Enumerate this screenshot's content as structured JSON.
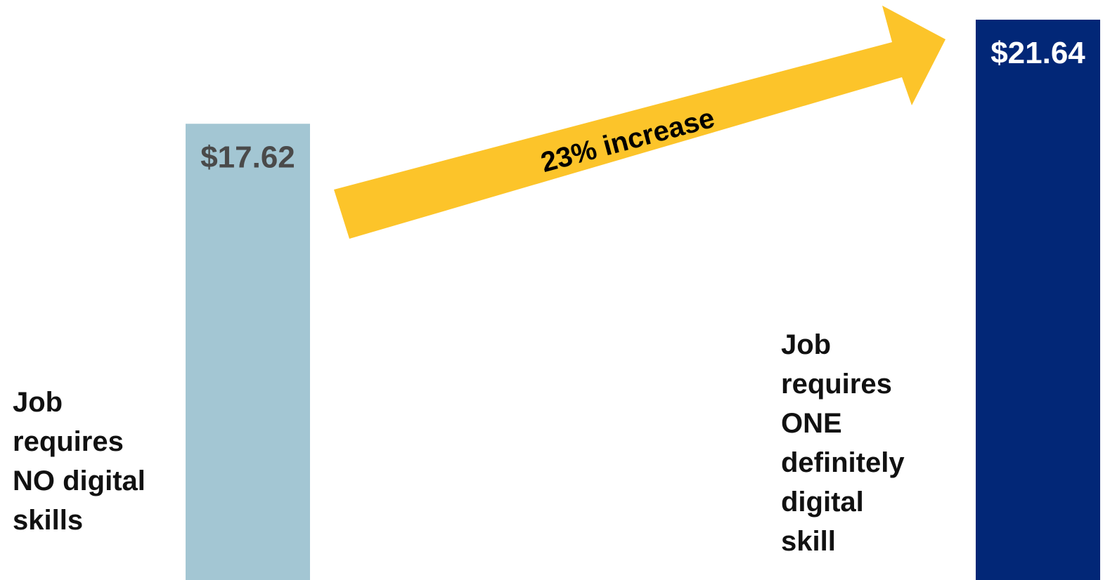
{
  "chart_data": {
    "type": "bar",
    "categories": [
      "Job requires NO digital skills",
      "Job requires ONE definitely digital skill"
    ],
    "category_lines": [
      [
        "Job",
        "requires",
        "NO digital",
        "skills"
      ],
      [
        "Job",
        "requires",
        "ONE",
        "definitely",
        "digital",
        "skill"
      ]
    ],
    "values": [
      17.62,
      21.64
    ],
    "value_labels": [
      "$17.62",
      "$21.64"
    ],
    "colors": [
      "#a3c6d3",
      "#022777"
    ],
    "value_label_colors": [
      "#4a4a4a",
      "#ffffff"
    ],
    "ylim": [
      0,
      22.4
    ],
    "title": "",
    "xlabel": "",
    "ylabel": "",
    "annotation": {
      "text": "23% increase",
      "color": "#fcc42a",
      "text_color": "#000000"
    }
  }
}
